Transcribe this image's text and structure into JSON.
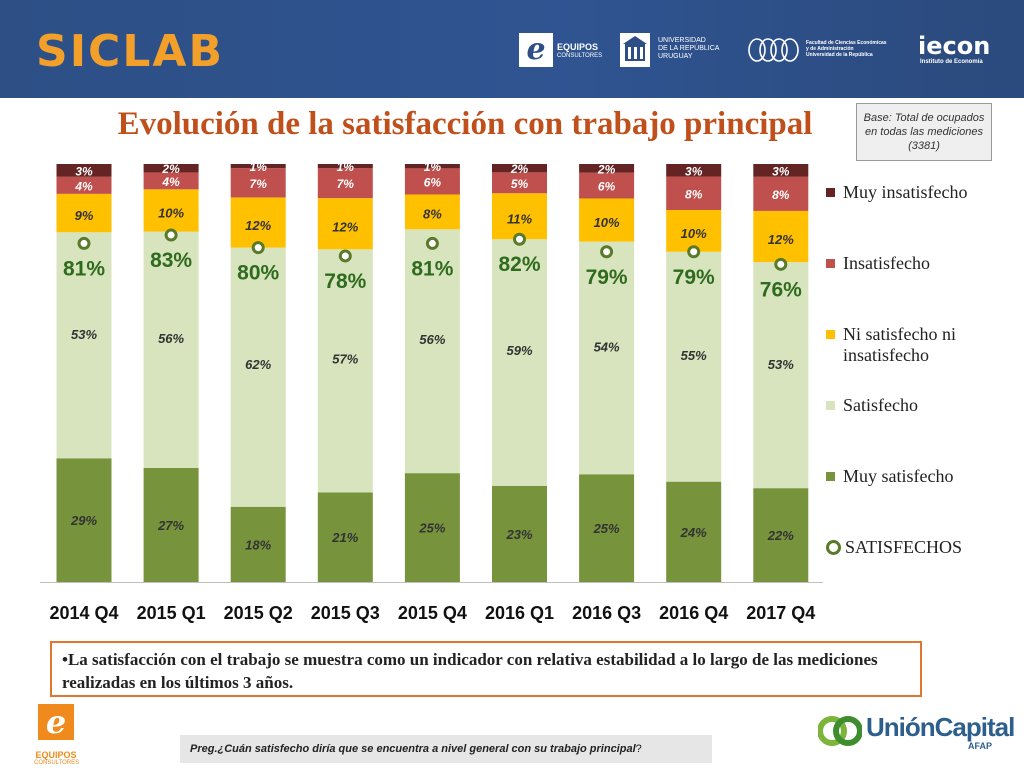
{
  "header": {
    "brand": "SICLAB",
    "logo_equipos": "EQUIPOS",
    "logo_equipos_sub": "CONSULTORES",
    "logo_udelar": [
      "UNIVERSIDAD",
      "DE LA REPÚBLICA",
      "URUGUAY"
    ],
    "logo_fcea": [
      "Facultad de Ciencias Económicas",
      "y de Administración",
      "Universidad de la República"
    ],
    "logo_iecon": "iecon",
    "logo_iecon_sub": "Instituto de Economía"
  },
  "base_note": "Base: Total de ocupados en todas las mediciones (3381)",
  "note": "•La satisfacción con el trabajo se muestra como un indicador con relativa estabilidad a lo largo de las mediciones realizadas en los últimos 3 años.",
  "footer": {
    "question_prefix": "Preg. ",
    "question": "¿Cuán satisfecho diría que se encuentra a nivel general con su trabajo principal",
    "question_suffix": "?"
  },
  "footer_logos": {
    "equipos": "EQUIPOS",
    "equipos_sub": "CONSULTORES",
    "union": "UniónCapital",
    "union_sub": "AFAP"
  },
  "colors": {
    "muy_satisfecho": "#77933c",
    "satisfecho": "#d7e4bd",
    "ni": "#ffc000",
    "insatisfecho": "#c0504d",
    "muy_insatisfecho": "#632423",
    "satisfechos_marker": "#5a7a2a",
    "label_green": "#2f6b1e"
  },
  "chart_data": {
    "type": "bar",
    "stacked": true,
    "title": "Evolución de la satisfacción con trabajo principal",
    "categories": [
      "2014 Q4",
      "2015 Q1",
      "2015 Q2",
      "2015 Q3",
      "2015 Q4",
      "2016 Q1",
      "2016 Q3",
      "2016 Q4",
      "2017 Q4"
    ],
    "series": [
      {
        "name": "Muy satisfecho",
        "values": [
          29,
          27,
          18,
          21,
          25,
          23,
          25,
          24,
          22
        ]
      },
      {
        "name": "Satisfecho",
        "values": [
          53,
          56,
          62,
          57,
          56,
          59,
          54,
          55,
          53
        ]
      },
      {
        "name": "Ni satisfecho ni insatisfecho",
        "values": [
          9,
          10,
          12,
          12,
          8,
          11,
          10,
          10,
          12
        ]
      },
      {
        "name": "Insatisfecho",
        "values": [
          4,
          4,
          7,
          7,
          6,
          5,
          6,
          8,
          8
        ]
      },
      {
        "name": "Muy insatisfecho",
        "values": [
          3,
          2,
          1,
          1,
          1,
          2,
          2,
          3,
          3
        ]
      }
    ],
    "line_series": {
      "name": "SATISFECHOS",
      "values": [
        81,
        83,
        80,
        78,
        81,
        82,
        79,
        79,
        76
      ]
    },
    "ylim": [
      0,
      100
    ],
    "grid": false,
    "legend_position": "right"
  }
}
